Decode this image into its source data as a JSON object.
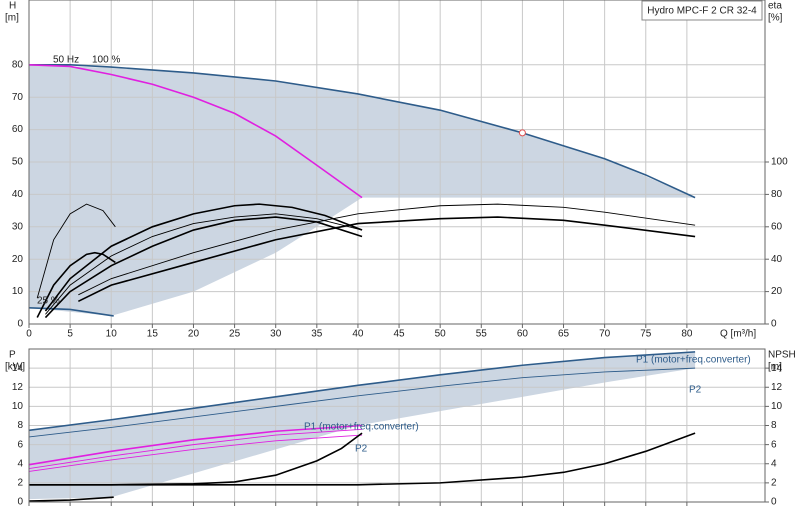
{
  "chart_data": [
    {
      "type": "line",
      "title": "Hydro MPC-F 2 CR 32-4",
      "ylabel": "H",
      "yunit": "[m]",
      "y2label": "eta",
      "y2unit": "[%]",
      "xlabel": "Q [m³/h]",
      "xlim": [
        0,
        89.5
      ],
      "xticks": [
        0,
        5,
        10,
        15,
        20,
        25,
        30,
        35,
        40,
        45,
        50,
        55,
        60,
        65,
        70,
        75,
        80
      ],
      "ylim": [
        0,
        100
      ],
      "yticks": [
        0,
        10,
        20,
        30,
        40,
        50,
        60,
        70,
        80
      ],
      "y2lim": [
        0,
        200
      ],
      "y2ticks": [
        0,
        20,
        40,
        60,
        80,
        100
      ],
      "grid": true,
      "show_xtick_labels": true,
      "band": {
        "color": "#ccd6e2",
        "x": [
          0,
          10,
          20,
          30,
          35,
          40.5,
          50,
          60,
          70,
          81
        ],
        "upper": [
          80,
          79,
          77.5,
          75,
          73,
          70.5,
          66,
          59,
          51,
          39
        ],
        "lower": [
          5,
          2.5,
          10,
          22,
          30,
          39,
          39,
          39,
          39,
          39
        ]
      },
      "series": [
        {
          "color": "#2e5c8a",
          "style": "thick",
          "x": [
            0,
            5,
            10,
            20,
            30,
            40,
            50,
            60,
            70,
            75,
            81
          ],
          "values": [
            80,
            80,
            79.3,
            77.5,
            75,
            71,
            66,
            59,
            51,
            46,
            39
          ]
        },
        {
          "color": "#e020e0",
          "style": "thick",
          "x": [
            0,
            5,
            10,
            15,
            20,
            25,
            30,
            35,
            40.5
          ],
          "values": [
            80,
            79.5,
            77,
            74,
            70,
            65,
            58,
            49,
            39
          ]
        },
        {
          "color": "#2e5c8a",
          "style": "thick",
          "x": [
            0,
            5,
            10.3
          ],
          "values": [
            5,
            4.5,
            2.5
          ]
        },
        {
          "color": "#000000",
          "style": "thick",
          "x": [
            2,
            5,
            10,
            15,
            20,
            25,
            28,
            32,
            36,
            40.5
          ],
          "values": [
            4,
            14,
            24,
            30,
            34,
            36.5,
            37,
            36,
            33.5,
            29
          ]
        },
        {
          "color": "#000000",
          "style": "thin",
          "x": [
            2,
            5,
            10,
            15,
            20,
            25,
            30,
            35,
            40.5
          ],
          "values": [
            3,
            12,
            21,
            27,
            31,
            33,
            34,
            32.5,
            29
          ]
        },
        {
          "color": "#000000",
          "style": "thick",
          "x": [
            2,
            5,
            10,
            15,
            20,
            25,
            30,
            35,
            40.5
          ],
          "values": [
            2,
            10,
            18,
            24,
            29,
            32,
            33,
            31.5,
            27
          ]
        },
        {
          "color": "#000000",
          "style": "thin",
          "x": [
            6,
            10,
            20,
            30,
            40,
            50,
            57,
            65,
            70,
            81
          ],
          "values": [
            9,
            14,
            22,
            29,
            34,
            36.5,
            37,
            36,
            34.5,
            30.5
          ]
        },
        {
          "color": "#000000",
          "style": "thick",
          "x": [
            6,
            10,
            20,
            30,
            40,
            50,
            57,
            65,
            70,
            81
          ],
          "values": [
            7,
            12,
            19,
            26,
            31,
            32.5,
            33,
            32,
            30.5,
            27
          ]
        },
        {
          "color": "#000000",
          "style": "thin",
          "x": [
            1,
            3,
            5,
            7,
            9,
            10.5
          ],
          "values": [
            8,
            26,
            34,
            37,
            35,
            30
          ]
        },
        {
          "color": "#000000",
          "style": "thick",
          "x": [
            1,
            3,
            5,
            7,
            8,
            9,
            10.5
          ],
          "values": [
            2,
            12,
            18,
            21.5,
            22,
            21.5,
            19
          ]
        }
      ],
      "points": [
        {
          "x": 60,
          "y": 59,
          "color": "#e05050"
        }
      ],
      "annotations": [
        "50 Hz",
        "100 %",
        "25 %"
      ]
    },
    {
      "type": "line",
      "ylabel": "P",
      "yunit": "[kW]",
      "y2label": "NPSH",
      "y2unit": "[m]",
      "xlim": [
        0,
        89.5
      ],
      "xticks": [
        0,
        5,
        10,
        15,
        20,
        25,
        30,
        35,
        40,
        45,
        50,
        55,
        60,
        65,
        70,
        75,
        80
      ],
      "ylim": [
        0,
        16
      ],
      "yticks": [
        0,
        2,
        4,
        6,
        8,
        10,
        12,
        14
      ],
      "y2lim": [
        0,
        16
      ],
      "y2ticks": [
        0,
        2,
        4,
        6,
        8,
        10,
        12,
        14
      ],
      "grid": true,
      "show_xtick_labels": false,
      "band": {
        "color": "#ccd6e2",
        "x": [
          0,
          10,
          20,
          30,
          40,
          50,
          60,
          70,
          81
        ],
        "upper": [
          7.5,
          8.6,
          9.8,
          11,
          12.2,
          13.3,
          14.3,
          15.1,
          15.7
        ],
        "lower": [
          0.3,
          0.5,
          3,
          5.5,
          8,
          9.5,
          11,
          12.5,
          14
        ]
      },
      "series": [
        {
          "color": "#2e5c8a",
          "style": "thick",
          "x": [
            0,
            10,
            20,
            30,
            40,
            50,
            60,
            70,
            81
          ],
          "values": [
            7.5,
            8.6,
            9.8,
            11,
            12.2,
            13.3,
            14.3,
            15.1,
            15.7
          ]
        },
        {
          "color": "#2e5c8a",
          "style": "thin",
          "x": [
            0,
            10,
            20,
            30,
            40,
            50,
            60,
            70,
            81
          ],
          "values": [
            6.8,
            7.8,
            8.9,
            10,
            11.1,
            12.1,
            13,
            13.6,
            14
          ]
        },
        {
          "color": "#e020e0",
          "style": "thick",
          "x": [
            0,
            10,
            20,
            30,
            40.5
          ],
          "values": [
            3.9,
            5.3,
            6.5,
            7.4,
            8
          ]
        },
        {
          "color": "#e020e0",
          "style": "thin",
          "x": [
            0,
            10,
            20,
            30,
            40.5
          ],
          "values": [
            3.5,
            4.8,
            6,
            7,
            7.6
          ]
        },
        {
          "color": "#e020e0",
          "style": "thin",
          "x": [
            0,
            10,
            20,
            30,
            40.5
          ],
          "values": [
            3.2,
            4.4,
            5.5,
            6.4,
            7
          ]
        },
        {
          "color": "#000000",
          "style": "thick",
          "axis": "y2",
          "x": [
            0,
            10,
            20,
            25,
            30,
            35,
            38,
            40.5
          ],
          "values": [
            1.8,
            1.8,
            1.9,
            2.1,
            2.8,
            4.3,
            5.6,
            7.2
          ]
        },
        {
          "color": "#000000",
          "style": "thick",
          "axis": "y2",
          "x": [
            0,
            20,
            40,
            50,
            60,
            65,
            70,
            75,
            81
          ],
          "values": [
            1.8,
            1.8,
            1.8,
            2,
            2.6,
            3.1,
            4,
            5.3,
            7.2
          ]
        },
        {
          "color": "#000000",
          "style": "thick",
          "x": [
            0,
            5,
            10.3
          ],
          "values": [
            0.1,
            0.2,
            0.5
          ]
        }
      ],
      "annotations": [
        "P1 (motor+freq.converter)",
        "P2",
        "P1 (motor+freq.converter)",
        "P2"
      ]
    }
  ]
}
